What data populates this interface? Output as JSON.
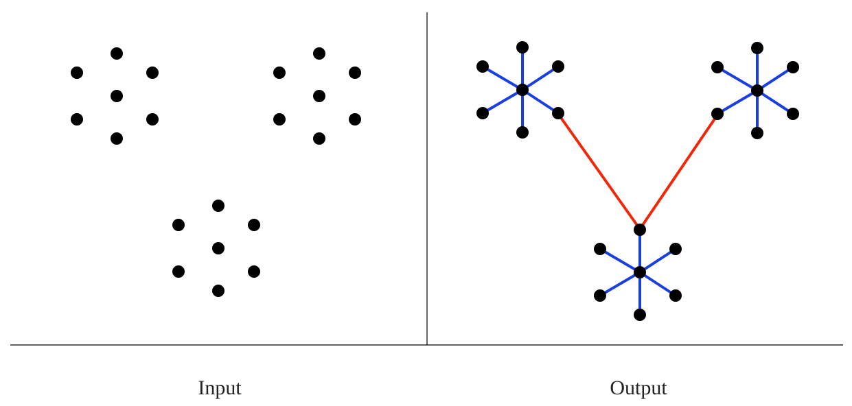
{
  "panels": [
    {
      "label": "Input"
    },
    {
      "label": "Output"
    }
  ]
}
